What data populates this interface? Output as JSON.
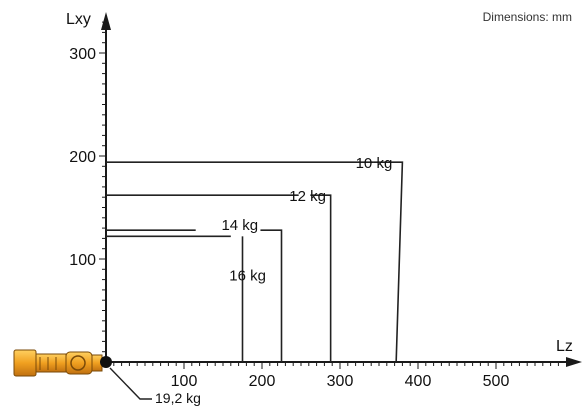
{
  "note": "Dimensions: mm",
  "chart_data": {
    "type": "line",
    "xlabel": "Lz",
    "ylabel": "Lxy",
    "xlim": [
      -121,
      600
    ],
    "ylim": [
      0,
      345
    ],
    "xticks": [
      100,
      200,
      300,
      400,
      500
    ],
    "yticks": [
      100,
      200,
      300
    ],
    "grid": false,
    "series": [
      {
        "name": "10 kg",
        "points": [
          [
            0,
            194
          ],
          [
            343,
            194
          ],
          [
            343,
            194
          ],
          [
            380,
            194
          ],
          [
            372,
            0
          ]
        ],
        "label_at": [
          320,
          194
        ]
      },
      {
        "name": "12 kg",
        "points": [
          [
            0,
            162
          ],
          [
            247,
            162
          ],
          [
            262,
            162
          ],
          [
            288,
            162
          ],
          [
            288,
            0
          ]
        ],
        "label_at": [
          235,
          162
        ]
      },
      {
        "name": "14 kg",
        "points": [
          [
            0,
            128
          ],
          [
            115,
            128
          ],
          [
            198,
            128
          ],
          [
            225,
            128
          ],
          [
            225,
            0
          ]
        ],
        "label_at": [
          148,
          134
        ]
      },
      {
        "name": "16 kg",
        "points": [
          [
            0,
            122
          ],
          [
            160,
            122
          ],
          [
            175,
            122
          ],
          [
            175,
            0
          ]
        ],
        "label_at": [
          158,
          85
        ]
      }
    ],
    "origin_label": "19,2 kg",
    "colors": {
      "axis": "#1a1a1a",
      "line": "#222222",
      "robot": "#f0a020"
    }
  }
}
